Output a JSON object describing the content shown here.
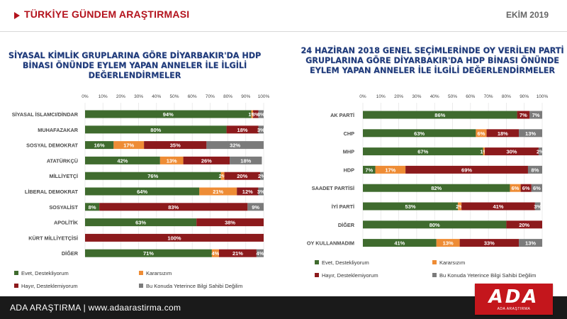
{
  "header": {
    "title": "TÜRKİYE GÜNDEM ARAŞTIRMASI",
    "date": "EKİM 2019"
  },
  "footer": {
    "text": "ADA ARAŞTIRMA |  www.adaarastirma.com"
  },
  "logo": {
    "text": "ADA",
    "sub": "ADA ARAŞTIRMA"
  },
  "legend": [
    {
      "label": "Evet, Destekliyorum",
      "color": "#3f6b2e"
    },
    {
      "label": "Kararsızım",
      "color": "#ee8c35"
    },
    {
      "label": "Hayır, Desteklemiyorum",
      "color": "#8c1a1c"
    },
    {
      "label": "Bu Konuda Yeterince Bilgi Sahibi Değilim",
      "color": "#7b7b7b"
    }
  ],
  "chart_data": [
    {
      "type": "bar",
      "orientation": "horizontal-stacked",
      "title": "SİYASAL KİMLİK GRUPLARINA GÖRE DİYARBAKIR'DA HDP BİNASI ÖNÜNDE EYLEM YAPAN ANNELER İLE İLGİLİ DEĞERLENDİRMELER",
      "xlim": [
        0,
        100
      ],
      "ticks": [
        "0%",
        "10%",
        "20%",
        "30%",
        "40%",
        "50%",
        "60%",
        "70%",
        "80%",
        "90%",
        "100%"
      ],
      "categories": [
        "SİYASAL İSLAMCI/DİNDAR",
        "MUHAFAZAKAR",
        "SOSYAL DEMOKRAT",
        "ATATÜRKÇÜ",
        "MİLLİYETÇİ",
        "LİBERAL DEMOKRAT",
        "SOSYALİST",
        "APOLİTİK",
        "KÜRT MİLLİYETÇİSİ",
        "DİĞER"
      ],
      "series": [
        {
          "name": "Evet, Destekliyorum",
          "values": [
            94,
            80,
            16,
            42,
            76,
            64,
            8,
            63,
            0,
            71
          ]
        },
        {
          "name": "Kararsızım",
          "values": [
            1,
            0,
            17,
            13,
            2,
            21,
            0,
            0,
            0,
            4
          ]
        },
        {
          "name": "Hayır, Desteklemiyorum",
          "values": [
            3,
            18,
            35,
            26,
            20,
            12,
            83,
            38,
            100,
            21
          ]
        },
        {
          "name": "Bu Konuda Yeterince Bilgi Sahibi Değilim",
          "values": [
            3,
            3,
            32,
            18,
            2,
            3,
            9,
            0,
            0,
            4
          ]
        }
      ],
      "legend": "bottom",
      "grid": true
    },
    {
      "type": "bar",
      "orientation": "horizontal-stacked",
      "title": "24 HAZİRAN 2018 GENEL SEÇİMLERİNDE OY VERİLEN PARTİ GRUPLARINA GÖRE DİYARBAKIR'DA HDP BİNASI ÖNÜNDE EYLEM YAPAN ANNELER İLE İLGİLİ DEĞERLENDİRMELER",
      "xlim": [
        0,
        100
      ],
      "ticks": [
        "0%",
        "10%",
        "20%",
        "30%",
        "40%",
        "50%",
        "60%",
        "70%",
        "80%",
        "90%",
        "100%"
      ],
      "categories": [
        "AK PARTİ",
        "CHP",
        "MHP",
        "HDP",
        "SAADET PARTİSİ",
        "İYİ PARTİ",
        "DİĞER",
        "OY KULLANMADIM"
      ],
      "series": [
        {
          "name": "Evet, Destekliyorum",
          "values": [
            86,
            63,
            67,
            7,
            82,
            53,
            80,
            41
          ]
        },
        {
          "name": "Kararsızım",
          "values": [
            0,
            6,
            1,
            17,
            6,
            2,
            0,
            13
          ]
        },
        {
          "name": "Hayır, Desteklemiyorum",
          "values": [
            7,
            18,
            30,
            69,
            6,
            41,
            20,
            33
          ]
        },
        {
          "name": "Bu Konuda Yeterince Bilgi Sahibi Değilim",
          "values": [
            7,
            13,
            2,
            8,
            6,
            3,
            0,
            13
          ]
        }
      ],
      "legend": "bottom",
      "grid": true
    }
  ]
}
